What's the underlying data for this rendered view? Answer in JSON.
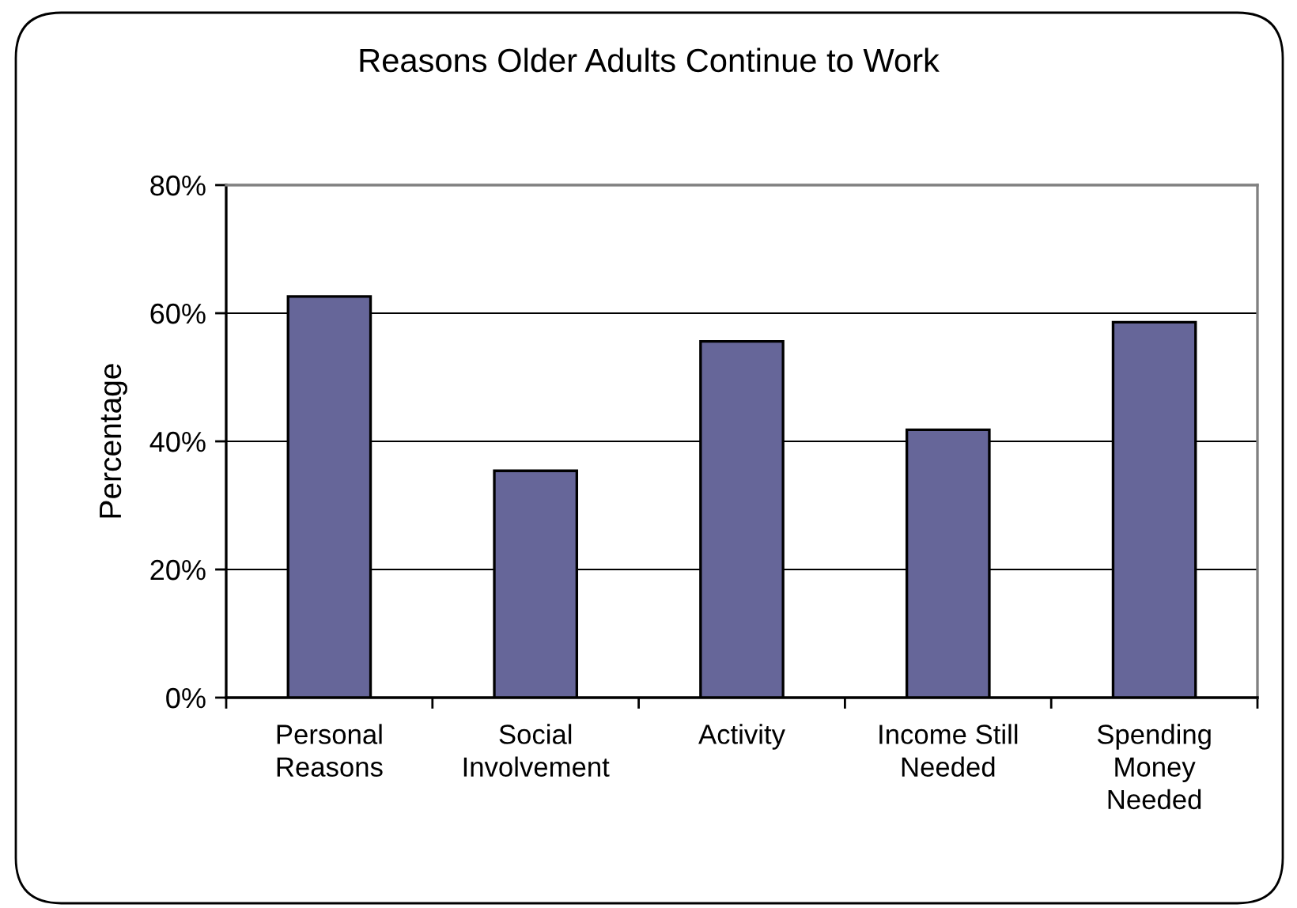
{
  "chart_data": {
    "type": "bar",
    "title": "Reasons Older Adults Continue to Work",
    "ylabel": "Percentage",
    "categories": [
      "Personal\nReasons",
      "Social\nInvolvement",
      "Activity",
      "Income Still\nNeeded",
      "Spending\nMoney\nNeeded"
    ],
    "values": [
      62.6,
      35.4,
      55.6,
      41.8,
      58.6
    ],
    "color": "#666699",
    "ylim": [
      0,
      80
    ],
    "yticks": [
      {
        "value": 0,
        "label": "0%"
      },
      {
        "value": 20,
        "label": "20%"
      },
      {
        "value": 40,
        "label": "40%"
      },
      {
        "value": 60,
        "label": "60%"
      },
      {
        "value": 80,
        "label": "80%"
      }
    ],
    "grid": "y",
    "legend": false
  }
}
